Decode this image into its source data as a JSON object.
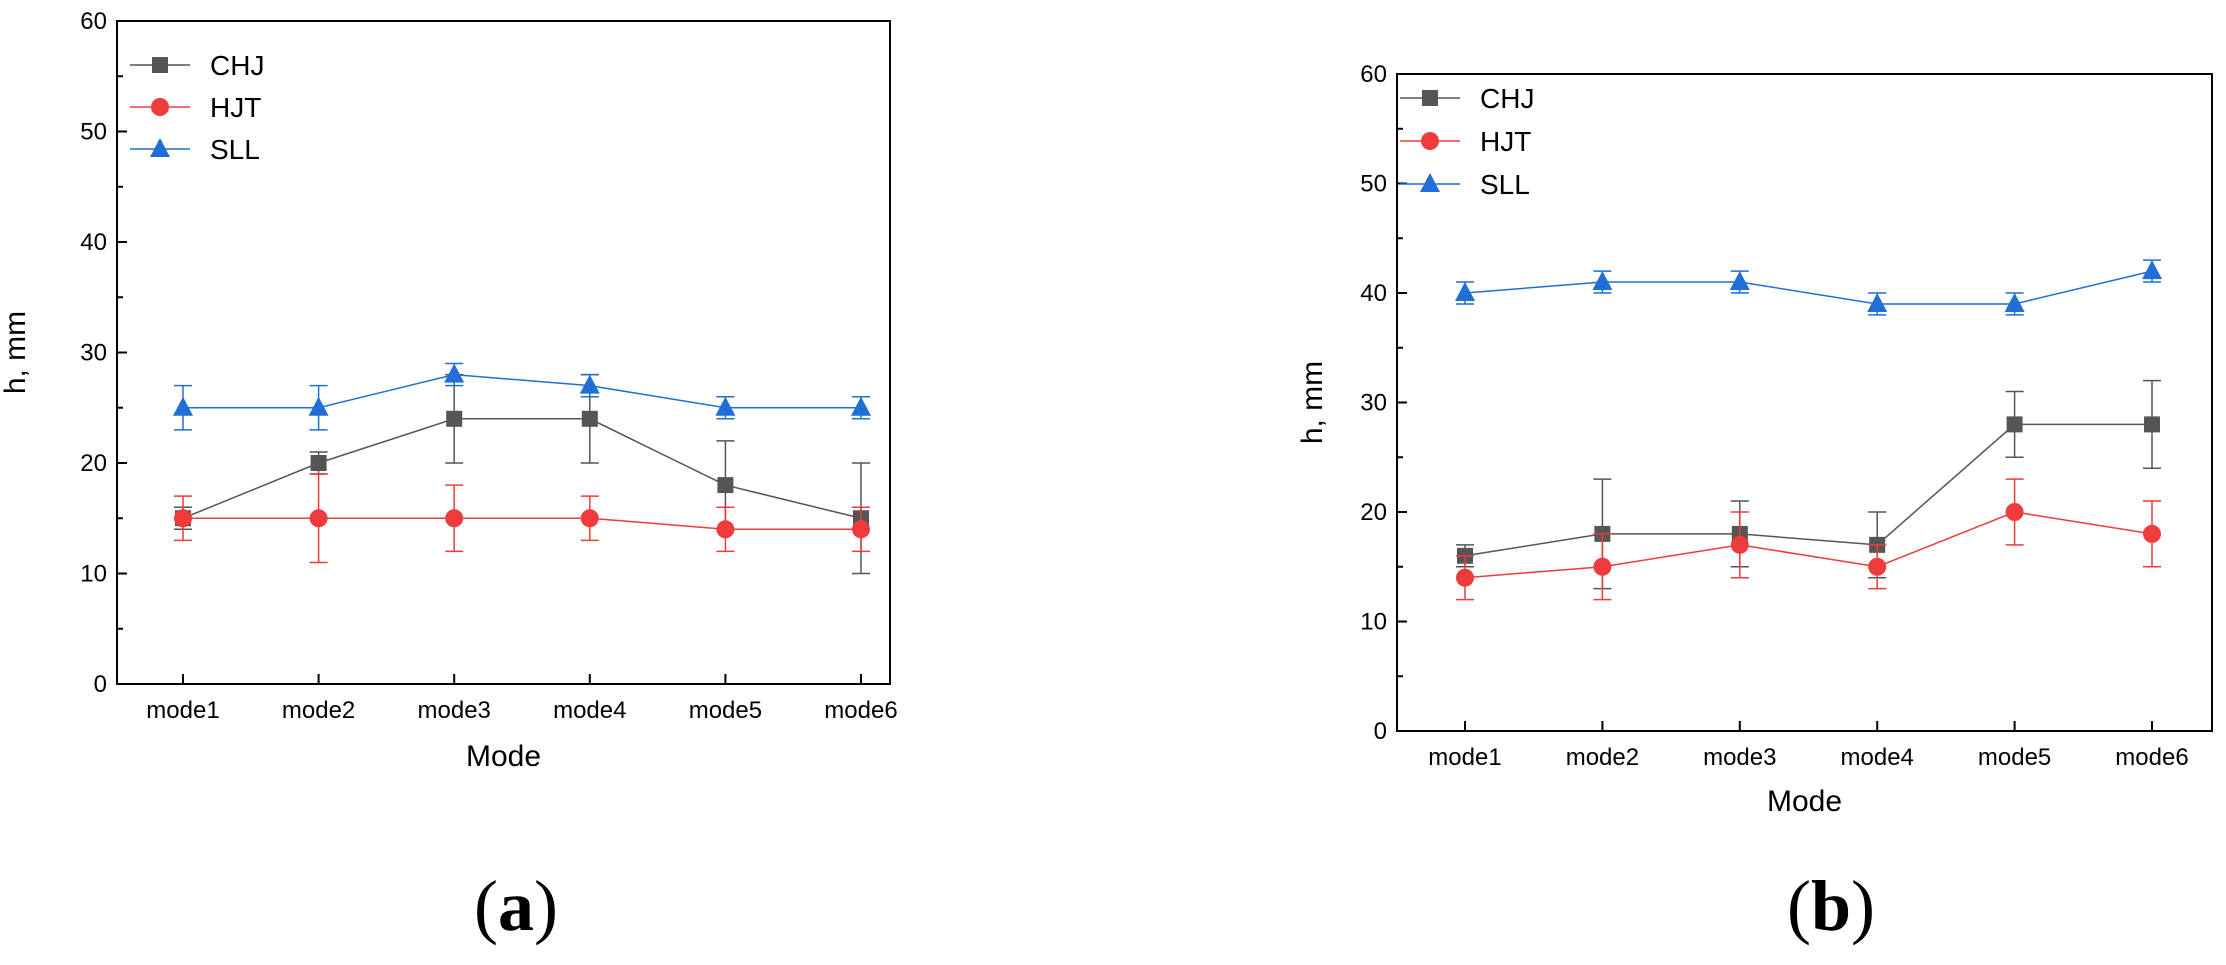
{
  "chart_data": [
    {
      "type": "line",
      "panel_label": [
        "(",
        "a",
        ")"
      ],
      "xlabel": "Mode",
      "ylabel": "h, mm",
      "categories": [
        "mode1",
        "mode2",
        "mode3",
        "mode4",
        "mode5",
        "mode6"
      ],
      "ylim": [
        0,
        60
      ],
      "yticks": [
        0,
        10,
        20,
        30,
        40,
        50,
        60
      ],
      "legend_position": "top-left",
      "grid": false,
      "series": [
        {
          "name": "CHJ",
          "color": "#555555",
          "marker": "square",
          "values": [
            15,
            20,
            24,
            24,
            18,
            15
          ],
          "error": [
            1,
            1,
            4,
            4,
            4,
            5
          ]
        },
        {
          "name": "HJT",
          "color": "#ef3b3b",
          "marker": "circle",
          "values": [
            15,
            15,
            15,
            15,
            14,
            14
          ],
          "error": [
            2,
            4,
            3,
            2,
            2,
            2
          ]
        },
        {
          "name": "SLL",
          "color": "#1f6fd6",
          "marker": "triangle",
          "values": [
            25,
            25,
            28,
            27,
            25,
            25
          ],
          "error": [
            2,
            2,
            1,
            1,
            1,
            1
          ]
        }
      ]
    },
    {
      "type": "line",
      "panel_label": [
        "(",
        "b",
        ")"
      ],
      "xlabel": "Mode",
      "ylabel": "h, mm",
      "categories": [
        "mode1",
        "mode2",
        "mode3",
        "mode4",
        "mode5",
        "mode6"
      ],
      "ylim": [
        0,
        60
      ],
      "yticks": [
        0,
        10,
        20,
        30,
        40,
        50,
        60
      ],
      "legend_position": "top-left",
      "grid": false,
      "series": [
        {
          "name": "CHJ",
          "color": "#555555",
          "marker": "square",
          "values": [
            16,
            18,
            18,
            17,
            28,
            28
          ],
          "error": [
            1,
            5,
            3,
            3,
            3,
            4
          ]
        },
        {
          "name": "HJT",
          "color": "#ef3b3b",
          "marker": "circle",
          "values": [
            14,
            15,
            17,
            15,
            20,
            18
          ],
          "error": [
            2,
            3,
            3,
            2,
            3,
            3
          ]
        },
        {
          "name": "SLL",
          "color": "#1f6fd6",
          "marker": "triangle",
          "values": [
            40,
            41,
            41,
            39,
            39,
            42
          ],
          "error": [
            1,
            1,
            1,
            1,
            1,
            1
          ]
        }
      ]
    }
  ]
}
